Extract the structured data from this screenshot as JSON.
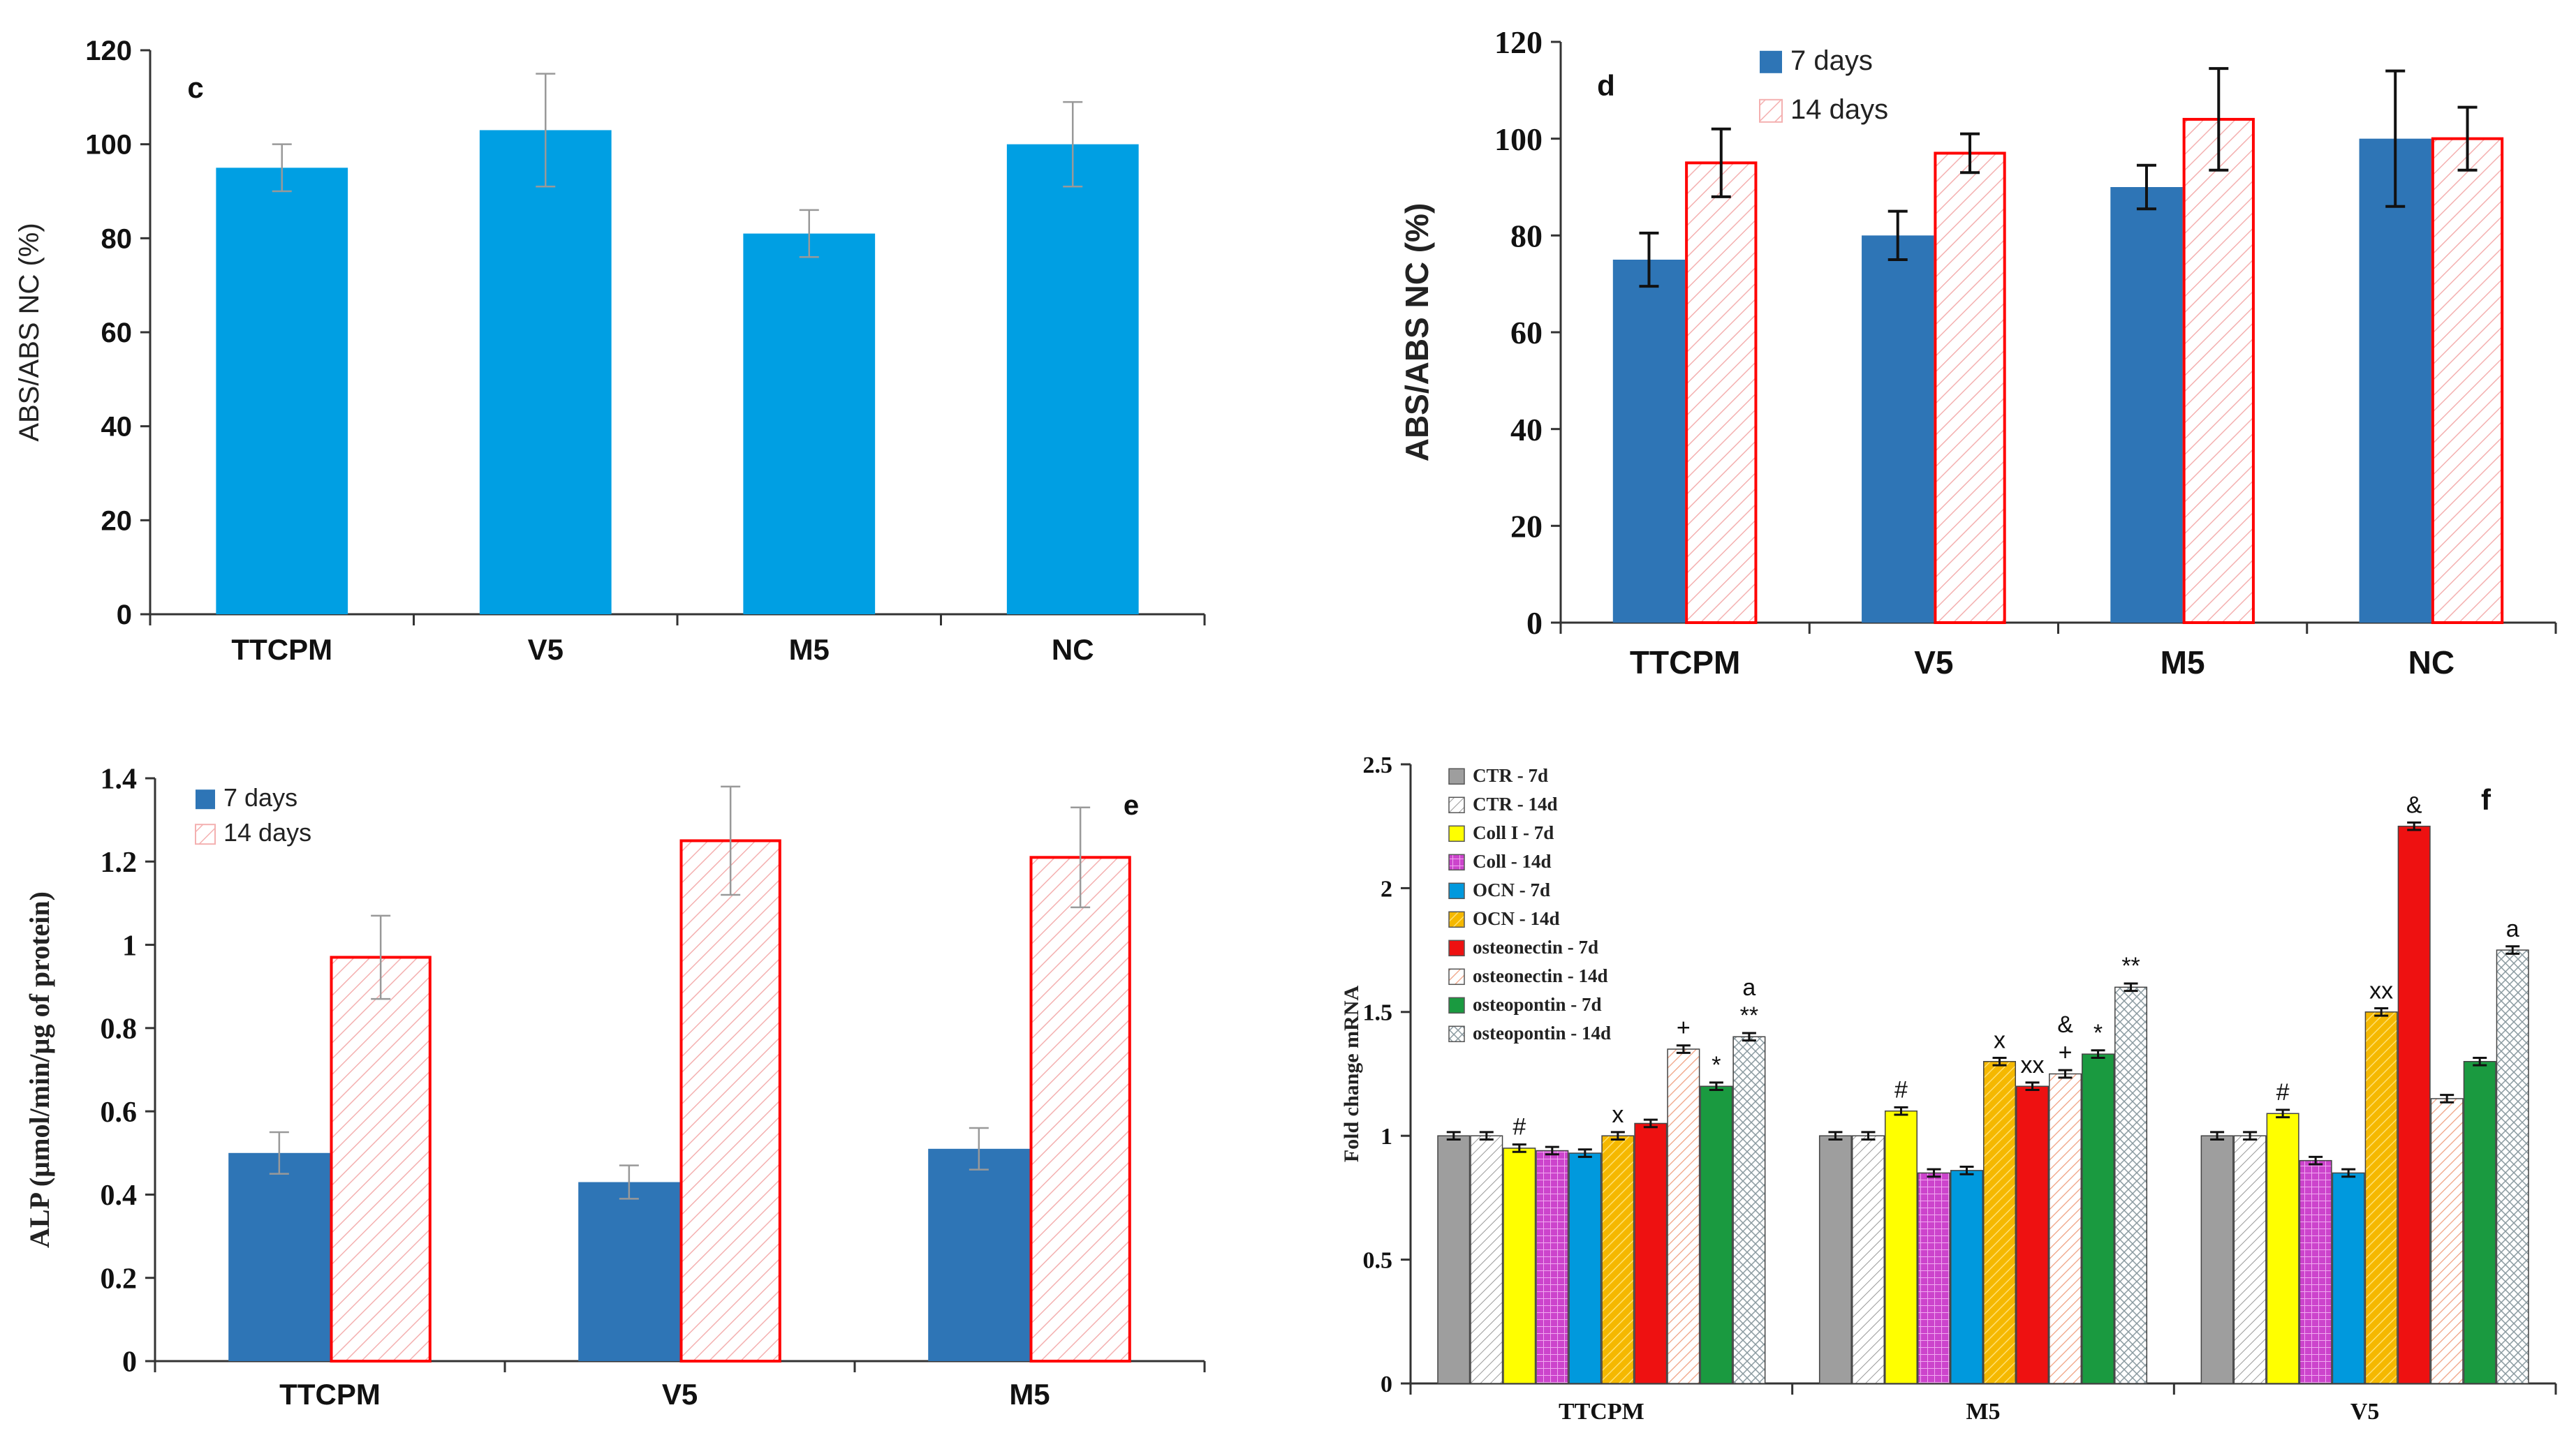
{
  "chart_data": [
    {
      "id": "c",
      "type": "bar",
      "panel_label": "c",
      "ylabel": "ABS/ABS NC (%)",
      "xlabel": "",
      "ylim": [
        0,
        120
      ],
      "yticks": [
        "0",
        "20",
        "40",
        "60",
        "80",
        "100",
        "120"
      ],
      "categories": [
        "TTCPM",
        "V5",
        "M5",
        "NC"
      ],
      "series": [
        {
          "name": "",
          "color": "#009fe3",
          "values": [
            95,
            103,
            81,
            100
          ],
          "errors": [
            5,
            12,
            5,
            9
          ]
        }
      ]
    },
    {
      "id": "d",
      "type": "bar",
      "panel_label": "d",
      "ylabel": "ABS/ABS NC (%)",
      "xlabel": "",
      "ylim": [
        0,
        120
      ],
      "yticks": [
        "0",
        "20",
        "40",
        "60",
        "80",
        "100",
        "120"
      ],
      "categories": [
        "TTCPM",
        "V5",
        "M5",
        "NC"
      ],
      "legend": [
        "7 days",
        "14 days"
      ],
      "series": [
        {
          "name": "7 days",
          "color": "#2e75b6",
          "values": [
            75,
            80,
            90,
            100
          ],
          "errors": [
            5.5,
            5,
            4.5,
            14
          ]
        },
        {
          "name": "14 days",
          "color": "#ff0000",
          "hatched": true,
          "values": [
            95,
            97,
            104,
            100
          ],
          "errors": [
            7,
            4,
            10.5,
            6.5
          ]
        }
      ]
    },
    {
      "id": "e",
      "type": "bar",
      "panel_label": "e",
      "ylabel": "ALP (µmol/min/µg of protein)",
      "xlabel": "",
      "ylim": [
        0,
        1.4
      ],
      "yticks": [
        "0",
        "0.2",
        "0.4",
        "0.6",
        "0.8",
        "1",
        "1.2",
        "1.4"
      ],
      "categories": [
        "TTCPM",
        "V5",
        "M5"
      ],
      "legend": [
        "7 days",
        "14 days"
      ],
      "series": [
        {
          "name": "7 days",
          "color": "#2e75b6",
          "values": [
            0.5,
            0.43,
            0.51
          ],
          "errors": [
            0.05,
            0.04,
            0.05
          ]
        },
        {
          "name": "14 days",
          "color": "#ff0000",
          "hatched": true,
          "values": [
            0.97,
            1.25,
            1.21
          ],
          "errors": [
            0.1,
            0.13,
            0.12
          ]
        }
      ]
    },
    {
      "id": "f",
      "type": "bar",
      "panel_label": "f",
      "ylabel": "Fold change mRNA",
      "xlabel": "",
      "ylim": [
        0,
        2.5
      ],
      "yticks": [
        "0",
        "0.5",
        "1",
        "1.5",
        "2",
        "2.5"
      ],
      "categories": [
        "TTCPM",
        "M5",
        "V5"
      ],
      "legend": [
        "CTR - 7d",
        "CTR - 14d",
        "Coll I - 7d",
        "Coll - 14d",
        "OCN - 7d",
        "OCN - 14d",
        "osteonectin - 7d",
        "osteonectin - 14d",
        "osteopontin - 7d",
        "osteopontin - 14d"
      ],
      "series": [
        {
          "name": "CTR - 7d",
          "color": "#9e9e9e",
          "values": [
            1.0,
            1.0,
            1.0
          ],
          "marks": [
            "",
            "",
            ""
          ]
        },
        {
          "name": "CTR - 14d",
          "color": "#cccccc",
          "pattern": "hatch",
          "values": [
            1.0,
            1.0,
            1.0
          ],
          "marks": [
            "",
            "",
            ""
          ]
        },
        {
          "name": "Coll I - 7d",
          "color": "#ffff00",
          "values": [
            0.95,
            1.1,
            1.09
          ],
          "marks": [
            "#",
            "#",
            "#"
          ]
        },
        {
          "name": "Coll - 14d",
          "color": "#cc44cc",
          "pattern": "grid",
          "values": [
            0.94,
            0.85,
            0.9
          ],
          "marks": [
            "",
            "",
            ""
          ]
        },
        {
          "name": "OCN - 7d",
          "color": "#0099dd",
          "values": [
            0.93,
            0.86,
            0.85
          ],
          "marks": [
            "",
            "",
            ""
          ]
        },
        {
          "name": "OCN - 14d",
          "color": "#f5b800",
          "pattern": "hatch",
          "values": [
            1.0,
            1.3,
            1.5
          ],
          "marks": [
            "x",
            "x",
            "xx"
          ]
        },
        {
          "name": "osteonectin - 7d",
          "color": "#ee1111",
          "values": [
            1.05,
            1.2,
            2.25
          ],
          "marks": [
            "",
            "xx",
            "&"
          ]
        },
        {
          "name": "osteonectin - 14d",
          "color": "#f0a080",
          "pattern": "hatch",
          "values": [
            1.35,
            1.25,
            1.15
          ],
          "marks": [
            "+",
            "& +",
            ""
          ]
        },
        {
          "name": "osteopontin - 7d",
          "color": "#1a9a40",
          "values": [
            1.2,
            1.33,
            1.3
          ],
          "marks": [
            "*",
            "*",
            ""
          ]
        },
        {
          "name": "osteopontin - 14d",
          "color": "#aaaaaa",
          "pattern": "cross",
          "values": [
            1.4,
            1.6,
            1.75
          ],
          "marks": [
            "a **",
            "**",
            "a"
          ]
        }
      ]
    }
  ]
}
